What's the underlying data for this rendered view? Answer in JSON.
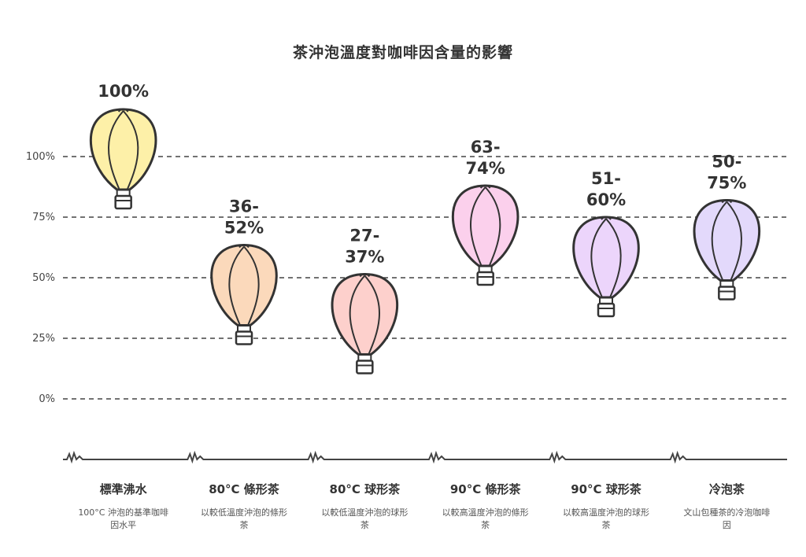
{
  "title": "茶沖泡溫度對咖啡因含量的影響",
  "chart_data": {
    "type": "range-bar",
    "title": "茶沖泡溫度對咖啡因含量的影響",
    "ylim": [
      0,
      100
    ],
    "yticks": [
      0,
      25,
      50,
      75,
      100
    ],
    "ytick_labels": [
      "0%",
      "25%",
      "50%",
      "75%",
      "100%"
    ],
    "grid": true,
    "categories": [
      {
        "name": "標準沸水",
        "desc": "100°C 沖泡的基準咖啡因水平",
        "low": 100,
        "high": 100,
        "label": "100%",
        "color": "#fdf0a8"
      },
      {
        "name": "80°C 條形茶",
        "desc": "以較低溫度沖泡的條形茶",
        "low": 36,
        "high": 52,
        "label": "36-52%",
        "color": "#fbd9bb"
      },
      {
        "name": "80°C 球形茶",
        "desc": "以較低溫度沖泡的球形茶",
        "low": 27,
        "high": 37,
        "label": "27-37%",
        "color": "#fdd0cc"
      },
      {
        "name": "90°C 條形茶",
        "desc": "以較高溫度沖泡的條形茶",
        "low": 63,
        "high": 74,
        "label": "63-74%",
        "color": "#fbd0ec"
      },
      {
        "name": "90°C 球形茶",
        "desc": "以較高溫度沖泡的球形茶",
        "low": 51,
        "high": 60,
        "label": "51-60%",
        "color": "#ecd5fb"
      },
      {
        "name": "冷泡茶",
        "desc": "文山包種茶的冷泡咖啡因",
        "low": 50,
        "high": 75,
        "label": "50-75%",
        "color": "#e3d9fb"
      }
    ]
  }
}
